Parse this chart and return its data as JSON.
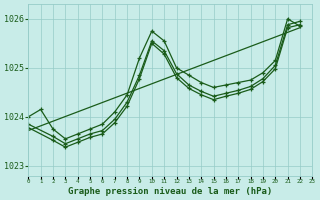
{
  "xlabel": "Graphe pression niveau de la mer (hPa)",
  "bg_color": "#c8ece8",
  "grid_color": "#96ccc8",
  "line_color": "#1a5c1a",
  "xlim": [
    0,
    23
  ],
  "ylim": [
    1022.8,
    1026.3
  ],
  "yticks": [
    1023,
    1024,
    1025,
    1026
  ],
  "xticks": [
    0,
    1,
    2,
    3,
    4,
    5,
    6,
    7,
    8,
    9,
    10,
    11,
    12,
    13,
    14,
    15,
    16,
    17,
    18,
    19,
    20,
    21,
    22,
    23
  ],
  "lines": [
    {
      "x": [
        0,
        1,
        2,
        3,
        4,
        5,
        6,
        7,
        8,
        9,
        10,
        11,
        12,
        13,
        14,
        15,
        16,
        17,
        18,
        19,
        20,
        21,
        22
      ],
      "y": [
        1024.0,
        1024.15,
        1023.75,
        1023.55,
        1023.65,
        1023.75,
        1023.85,
        1024.1,
        1024.45,
        1025.2,
        1025.75,
        1025.55,
        1025.0,
        1024.85,
        1024.7,
        1024.6,
        1024.65,
        1024.7,
        1024.75,
        1024.9,
        1025.15,
        1026.0,
        1025.85
      ]
    },
    {
      "x": [
        0,
        2,
        3,
        4,
        5,
        6,
        7,
        8,
        9,
        10,
        11,
        12,
        13,
        14,
        15,
        16,
        17,
        18,
        19,
        20,
        21,
        22
      ],
      "y": [
        1023.85,
        1023.6,
        1023.45,
        1023.55,
        1023.65,
        1023.72,
        1023.95,
        1024.3,
        1024.85,
        1025.55,
        1025.35,
        1024.88,
        1024.65,
        1024.52,
        1024.42,
        1024.48,
        1024.54,
        1024.62,
        1024.78,
        1025.05,
        1025.88,
        1025.95
      ]
    },
    {
      "x": [
        0,
        2,
        3,
        4,
        5,
        6,
        7,
        8,
        9,
        10,
        11,
        12,
        13,
        14,
        15,
        16,
        17,
        18,
        19,
        20,
        21,
        22
      ],
      "y": [
        1023.78,
        1023.52,
        1023.38,
        1023.48,
        1023.58,
        1023.65,
        1023.88,
        1024.22,
        1024.78,
        1025.5,
        1025.28,
        1024.8,
        1024.58,
        1024.45,
        1024.35,
        1024.42,
        1024.48,
        1024.56,
        1024.72,
        1024.98,
        1025.82,
        1025.88
      ]
    },
    {
      "x": [
        0,
        22
      ],
      "y": [
        1023.72,
        1025.82
      ]
    }
  ]
}
